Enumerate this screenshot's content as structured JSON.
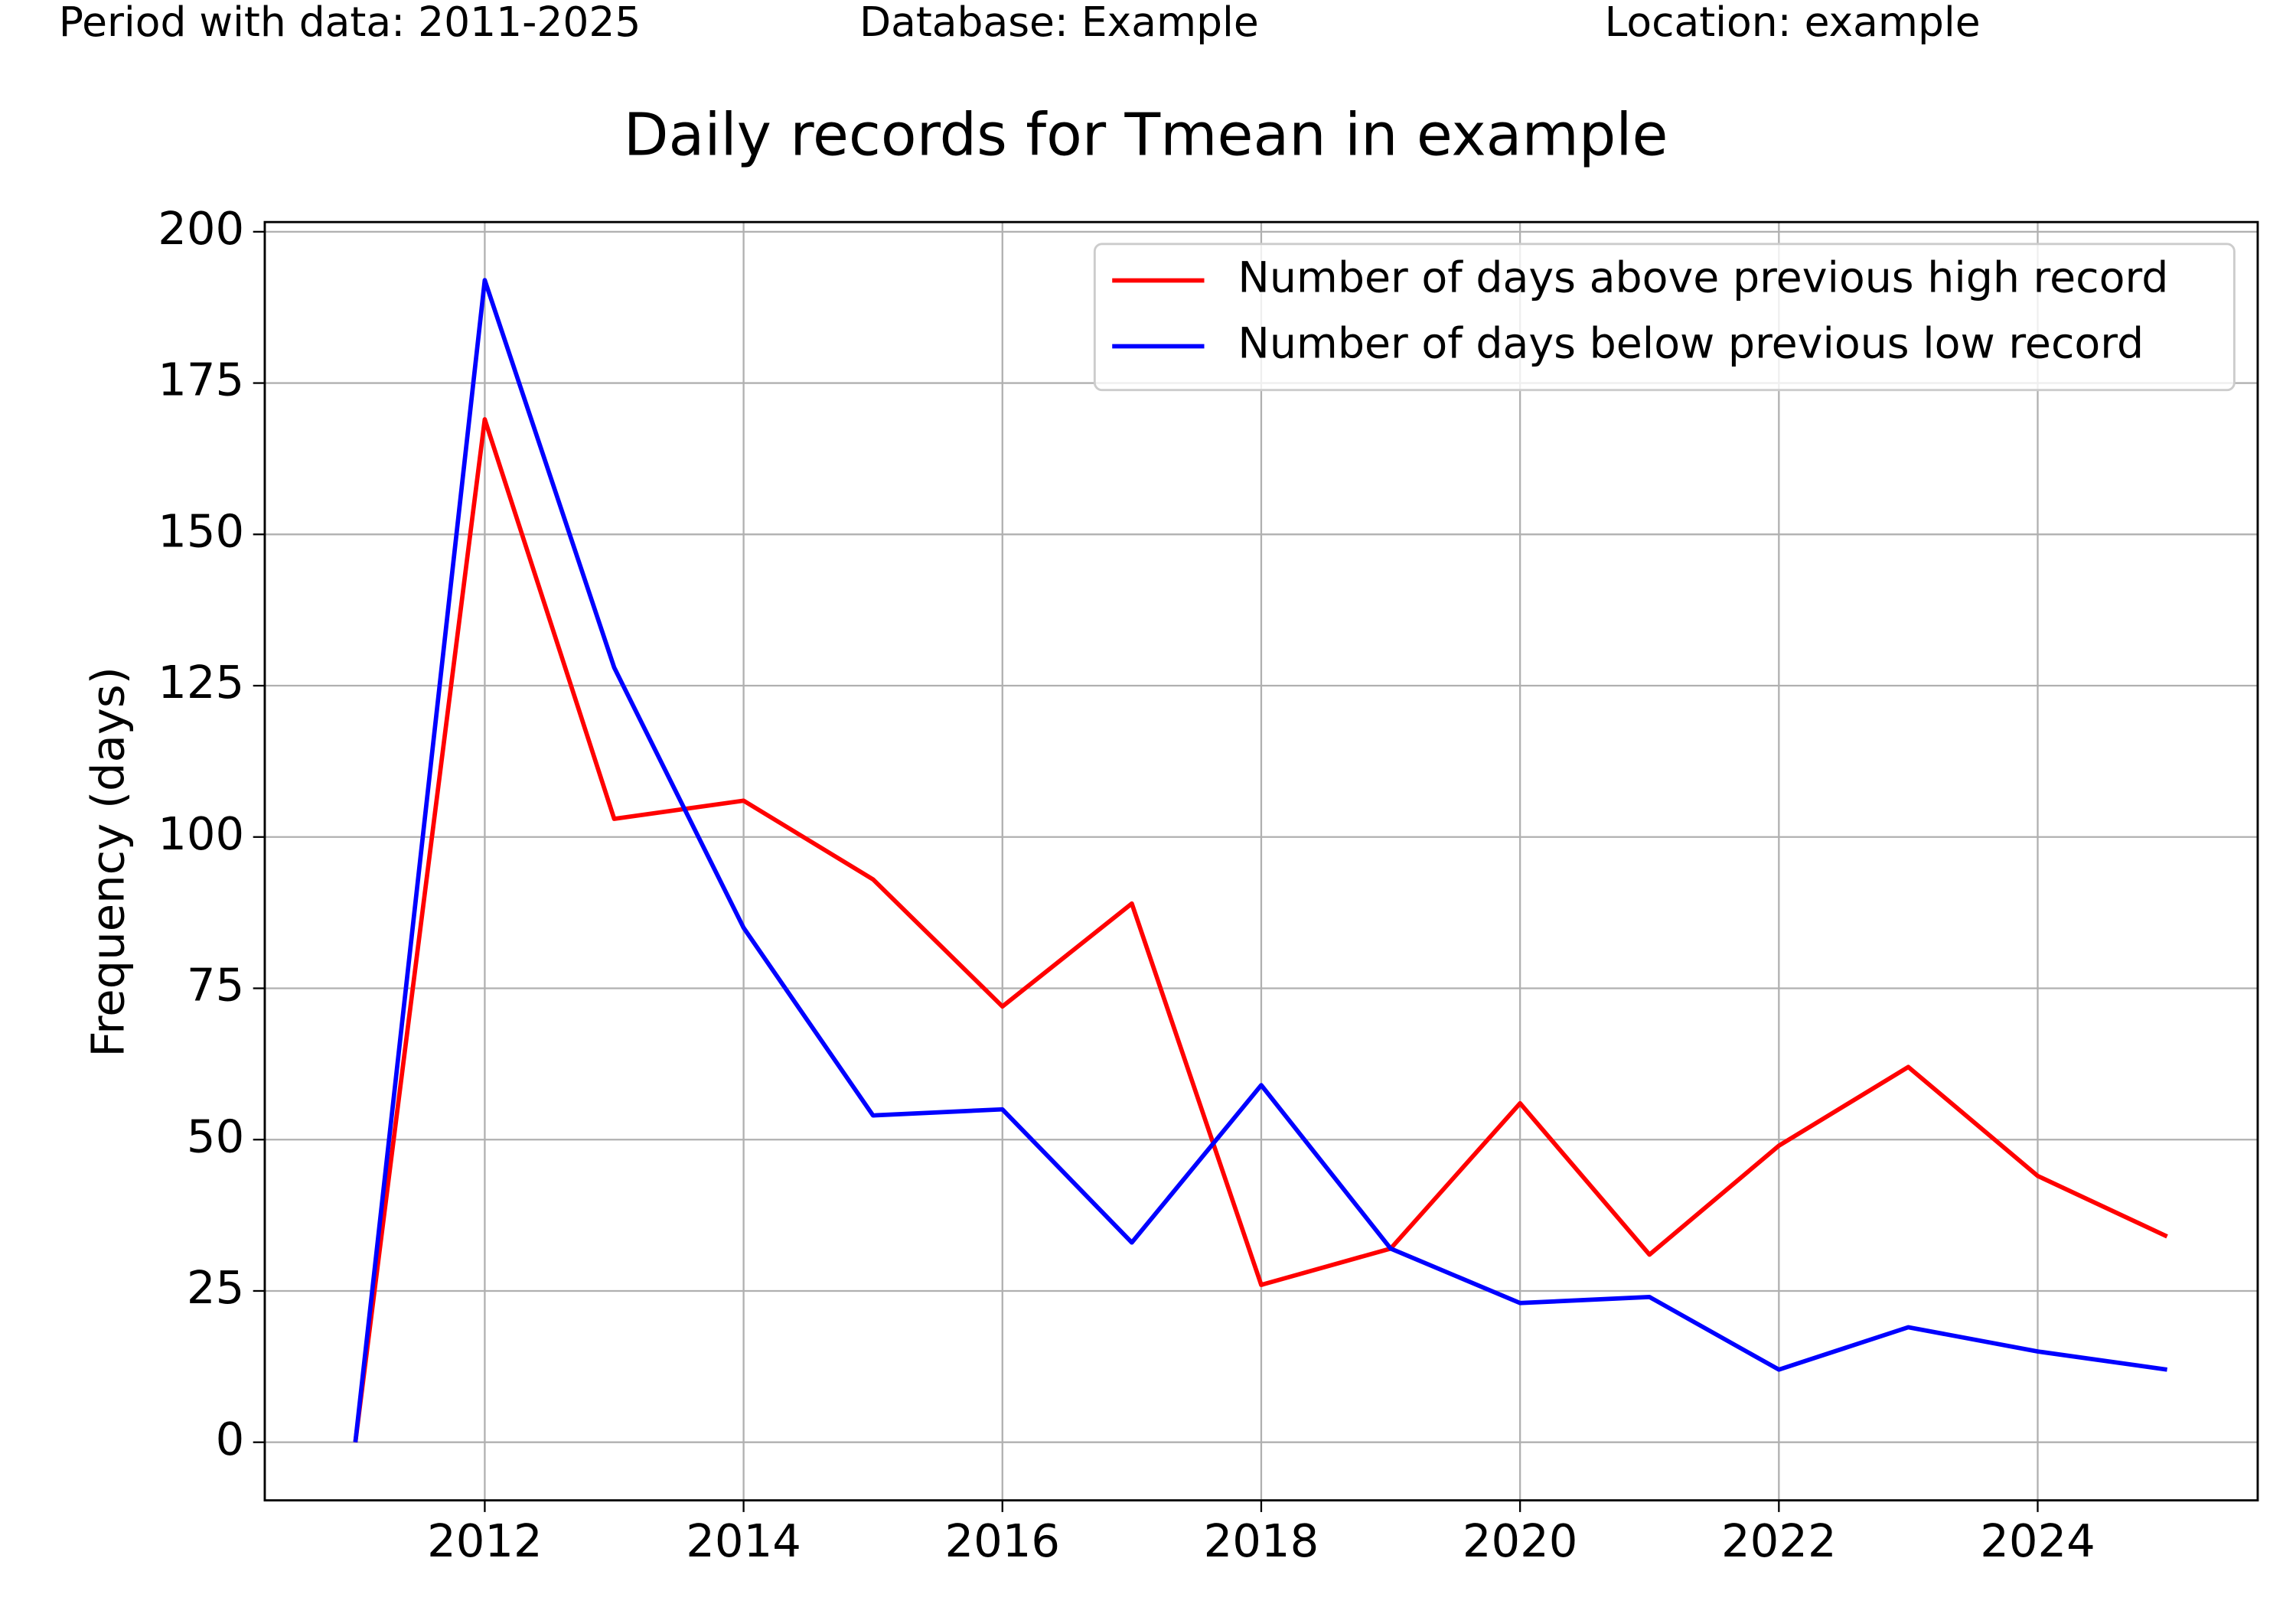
{
  "header": {
    "period": "Period with data: 2011-2025",
    "database": "Database: Example",
    "location": "Location: example"
  },
  "chart_data": {
    "type": "line",
    "title": "Daily records for Tmean in example",
    "y_label": "Frequency (days)",
    "x": [
      2011,
      2012,
      2013,
      2014,
      2015,
      2016,
      2017,
      2018,
      2019,
      2020,
      2021,
      2022,
      2023,
      2024,
      2025
    ],
    "series": [
      {
        "name": "Number of days above previous high record",
        "color": "#ff0000",
        "values": [
          0,
          169,
          103,
          106,
          93,
          72,
          89,
          26,
          32,
          56,
          31,
          49,
          62,
          44,
          34
        ]
      },
      {
        "name": "Number of days below previous low record",
        "color": "#0000ff",
        "values": [
          0,
          192,
          128,
          85,
          54,
          55,
          33,
          59,
          32,
          23,
          24,
          12,
          19,
          15,
          12
        ]
      }
    ],
    "xlim": [
      2010.3,
      2025.7
    ],
    "xticks": [
      2012,
      2014,
      2016,
      2018,
      2020,
      2022,
      2024
    ],
    "ylim": [
      -9.6,
      201.6
    ],
    "yticks": [
      0,
      25,
      50,
      75,
      100,
      125,
      150,
      175,
      200
    ],
    "grid": true,
    "legend": "upper right"
  }
}
